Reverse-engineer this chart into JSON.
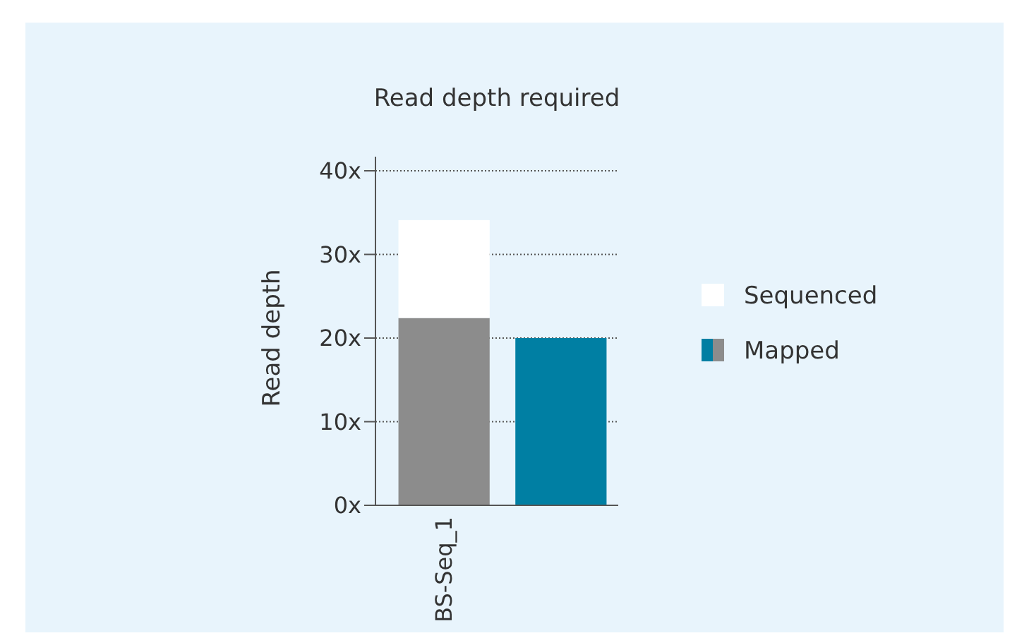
{
  "chart_data": {
    "type": "bar",
    "title": "Read depth required",
    "ylabel": "Read depth",
    "categories": [
      "BS-Seq_1",
      null
    ],
    "stacked": true,
    "series": [
      {
        "name": "Mapped",
        "colors": [
          "#8c8c8c",
          "#007fa3"
        ],
        "values": [
          22.4,
          20
        ]
      },
      {
        "name": "Sequenced",
        "color": "#ffffff",
        "values": [
          11.7,
          0
        ]
      }
    ],
    "ylim": [
      0,
      40
    ],
    "yticks": [
      {
        "value": 0,
        "label": "0x"
      },
      {
        "value": 10,
        "label": "10x"
      },
      {
        "value": 20,
        "label": "20x"
      },
      {
        "value": 30,
        "label": "30x"
      },
      {
        "value": 40,
        "label": "40x"
      }
    ],
    "grid": "y",
    "legend": "right"
  }
}
